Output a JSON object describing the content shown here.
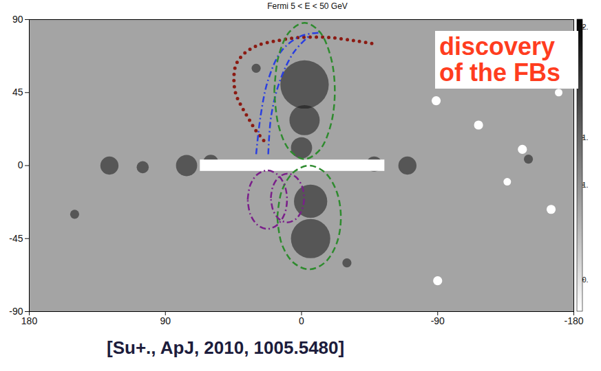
{
  "chart_data": {
    "type": "map",
    "title": "Fermi 5 < E < 50 GeV",
    "xlim": [
      180,
      -180
    ],
    "xticks": [
      180,
      90,
      0,
      -90,
      -180
    ],
    "ylim": [
      -90,
      90
    ],
    "yticks": [
      -90,
      -45,
      0,
      45,
      90
    ],
    "color": "#a4a4a4",
    "annotation": {
      "text": "discovery of the FBs",
      "color": "#ff3d1f"
    },
    "caption": "[Su+., ApJ, 2010, 1005.5480]",
    "bright_band": {
      "x": [
        67,
        -55
      ],
      "y": [
        -3.5,
        3.5
      ]
    },
    "dark_spots": {
      "x": [
        -2,
        -2,
        -6,
        -6,
        127,
        105,
        76,
        60,
        -70,
        -48,
        0,
        -150,
        150,
        -30,
        30
      ],
      "y": [
        50,
        28,
        -22,
        -45,
        0,
        -1,
        0,
        2,
        0,
        1,
        11,
        4,
        -30,
        -60,
        60
      ],
      "r": [
        16,
        10,
        11,
        13,
        6,
        4,
        7,
        5,
        6,
        5,
        7,
        3,
        3,
        3,
        3
      ]
    },
    "bright_spots": {
      "x": [
        -89,
        -117,
        -146,
        -165,
        -90,
        -136,
        -170
      ],
      "y": [
        40,
        25,
        10,
        -27,
        -71,
        -10,
        45
      ],
      "r": [
        3,
        3,
        3,
        3,
        3,
        2.5,
        2.5
      ]
    },
    "series": [
      {
        "color": "#8b1a12",
        "line_style": "dotted",
        "x": [
          25,
          30.5,
          35,
          39.4,
          43.4,
          44.7,
          43.4,
          38,
          29.2,
          16,
          0.4,
          -17.3,
          -35,
          -48
        ],
        "y": [
          15.5,
          22,
          29,
          36,
          44,
          53,
          62,
          69,
          74,
          77,
          79,
          79,
          77,
          75
        ]
      },
      {
        "color": "#2a3fe0",
        "line_style": "dashdot",
        "x": [
          30,
          27,
          22,
          13,
          0,
          -13
        ],
        "y": [
          7,
          31,
          53,
          71,
          80,
          82
        ]
      },
      {
        "color": "#2a3fe0",
        "line_style": "dashdot",
        "x": [
          22,
          20,
          14,
          5,
          -5
        ],
        "y": [
          7,
          31,
          53,
          70,
          80
        ]
      },
      {
        "color": "#2e8b2e",
        "line_style": "dashed",
        "x": [
          18,
          15.3,
          8,
          -2,
          -12,
          -19.3,
          -22,
          -19.3,
          -12,
          -2,
          8,
          15.3,
          18
        ],
        "y": [
          46,
          67,
          82.4,
          88,
          82.4,
          67,
          46,
          25,
          9.6,
          4,
          9.6,
          25,
          46
        ]
      },
      {
        "color": "#2e8b2e",
        "line_style": "dashed",
        "x": [
          16,
          13.2,
          5.5,
          -5,
          -15.5,
          -23.2,
          -26,
          -23.2,
          -15.5,
          -5,
          5.5,
          13.2,
          16
        ],
        "y": [
          -32,
          -16,
          -4.3,
          0,
          -4.3,
          -16,
          -32,
          -48,
          -59.7,
          -64,
          -59.7,
          -48,
          -32
        ]
      },
      {
        "color": "#7a1f8a",
        "line_style": "dashdot",
        "x": [
          35.6,
          33.9,
          29.1,
          22.6,
          16.1,
          11.3,
          9.6,
          11.3,
          16.1,
          22.6,
          29.1,
          33.9,
          35.6
        ],
        "y": [
          -21,
          -12,
          -5.4,
          -3,
          -5.4,
          -12,
          -21,
          -30,
          -36.6,
          -39,
          -36.6,
          -30,
          -21
        ]
      },
      {
        "color": "#7a1f8a",
        "line_style": "dashdot",
        "x": [
          20.3,
          18.8,
          14.8,
          9.3,
          3.8,
          -0.2,
          -1.7,
          -0.2,
          3.8,
          9.3,
          14.8,
          18.8,
          20.3
        ],
        "y": [
          -20,
          -12.5,
          -7,
          -5,
          -7,
          -12.5,
          -20,
          -27.5,
          -33,
          -35,
          -33,
          -27.5,
          -20
        ]
      }
    ],
    "colorbar": {
      "range": [
        0.2,
        2.05
      ],
      "ticks": [
        {
          "value": 2.0,
          "label": "2."
        },
        {
          "value": 1.3,
          "label": "1."
        },
        {
          "value": 1.0,
          "label": "1."
        },
        {
          "value": 0.4,
          "label": "0."
        }
      ]
    }
  }
}
